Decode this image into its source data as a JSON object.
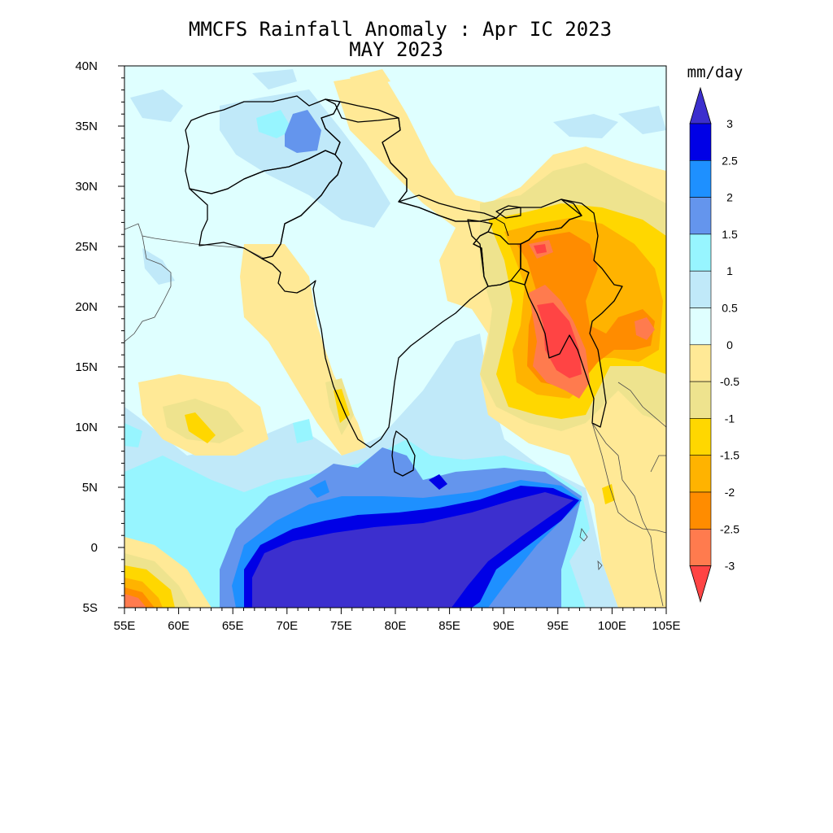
{
  "chart_data": {
    "type": "filled-contour-map",
    "title": "MMCFS Rainfall Anomaly : Apr IC 2023",
    "subtitle": "MAY 2023",
    "units": "mm/day",
    "lon_range": [
      55,
      105
    ],
    "lat_range": [
      -5,
      40
    ],
    "x_ticks": [
      {
        "value": 55,
        "label": "55E"
      },
      {
        "value": 60,
        "label": "60E"
      },
      {
        "value": 65,
        "label": "65E"
      },
      {
        "value": 70,
        "label": "70E"
      },
      {
        "value": 75,
        "label": "75E"
      },
      {
        "value": 80,
        "label": "80E"
      },
      {
        "value": 85,
        "label": "85E"
      },
      {
        "value": 90,
        "label": "90E"
      },
      {
        "value": 95,
        "label": "95E"
      },
      {
        "value": 100,
        "label": "100E"
      },
      {
        "value": 105,
        "label": "105E"
      }
    ],
    "y_ticks": [
      {
        "value": 40,
        "label": "40N"
      },
      {
        "value": 35,
        "label": "35N"
      },
      {
        "value": 30,
        "label": "30N"
      },
      {
        "value": 25,
        "label": "25N"
      },
      {
        "value": 20,
        "label": "20N"
      },
      {
        "value": 15,
        "label": "15N"
      },
      {
        "value": 10,
        "label": "10N"
      },
      {
        "value": 5,
        "label": "5N"
      },
      {
        "value": 0,
        "label": "0"
      },
      {
        "value": -5,
        "label": "5S"
      }
    ],
    "colorbar": {
      "levels": [
        "3",
        "2.5",
        "2",
        "1.5",
        "1",
        "0.5",
        "0",
        "-0.5",
        "-1",
        "-1.5",
        "-2",
        "-2.5",
        "-3"
      ],
      "colors": [
        "#0000e6",
        "#1e90ff",
        "#6495ed",
        "#97f5ff",
        "#c0e9f9",
        "#dfffff",
        "#ffe996",
        "#eee38e",
        "#ffd700",
        "#ffb300",
        "#ff8c00",
        "#ff7b4e"
      ],
      "upper_triangle_color": "#3c2fce",
      "lower_triangle_color": "#ff4444"
    },
    "palette": {
      "n3": "#3c2fce",
      "n25": "#0000e6",
      "n2": "#1e90ff",
      "n15": "#6495ed",
      "n1": "#97f5ff",
      "n05": "#c0e9f9",
      "n0": "#dfffff",
      "d0": "#ffe996",
      "d05": "#eee38e",
      "d1": "#ffd700",
      "d15": "#ffb300",
      "d2": "#ff8c00",
      "d25": "#ff7b4e",
      "d3": "#ff4444"
    }
  }
}
